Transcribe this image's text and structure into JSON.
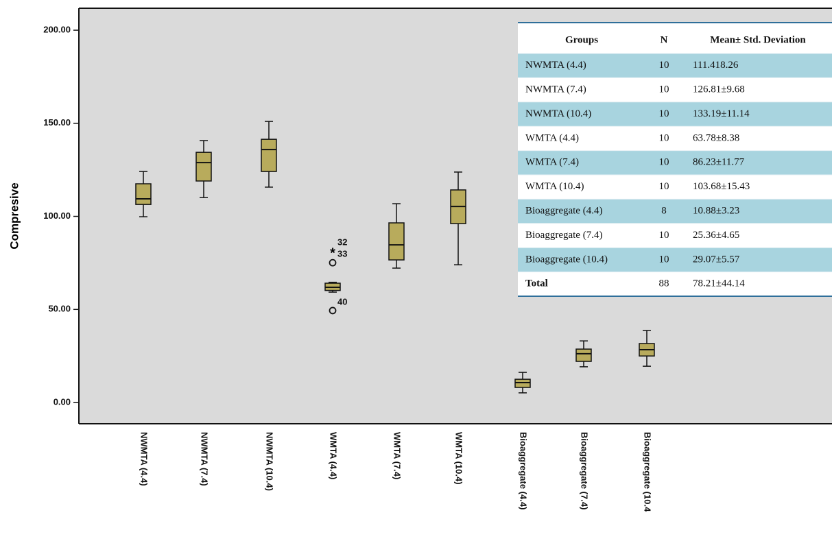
{
  "chart_data": {
    "type": "box",
    "y_label": "Compresive",
    "categories": [
      "NWMTA (4.4)",
      "NWMTA (7.4)",
      "NWMTA (10.4)",
      "WMTA (4.4)",
      "WMTA (7.4)",
      "WMTA (10.4)",
      "Bioaggregate (4.4)",
      "Bioaggregate (7.4)",
      "Bioaggregate (10.4"
    ],
    "color": "#b8ab5c",
    "boxes": [
      {
        "min": 99.8,
        "q1": 106.4,
        "median": 109.4,
        "q3": 117.5,
        "max": 124.1
      },
      {
        "min": 110.1,
        "q1": 119,
        "median": 128.9,
        "q3": 134.4,
        "max": 140.7
      },
      {
        "min": 115.7,
        "q1": 124.1,
        "median": 135.9,
        "q3": 141.4,
        "max": 151
      },
      {
        "min": 59.3,
        "q1": 60.2,
        "median": 61.9,
        "q3": 64.1,
        "max": 64.6,
        "outliers": [
          {
            "value": 81.4,
            "label": "32",
            "marker": "star"
          },
          {
            "value": 75.1,
            "label": "33",
            "marker": "circle"
          },
          {
            "value": 49.4,
            "label": "40",
            "marker": "circle"
          }
        ]
      },
      {
        "min": 72.2,
        "q1": 76.6,
        "median": 84.7,
        "q3": 96.5,
        "max": 106.8
      },
      {
        "min": 74,
        "q1": 96.1,
        "median": 105.3,
        "q3": 114.2,
        "max": 123.8
      },
      {
        "min": 5.2,
        "q1": 8.1,
        "median": 10.7,
        "q3": 12.5,
        "max": 16.2
      },
      {
        "min": 19.2,
        "q1": 22.1,
        "median": 26.2,
        "q3": 28.7,
        "max": 33.1
      },
      {
        "min": 19.5,
        "q1": 25,
        "median": 28.4,
        "q3": 31.7,
        "max": 38.7
      }
    ],
    "ylim": [
      -11.4,
      211.8
    ],
    "yticks": [
      {
        "value": 0,
        "label": "0.00"
      },
      {
        "value": 50,
        "label": "50.00"
      },
      {
        "value": 100,
        "label": "100.00"
      },
      {
        "value": 150,
        "label": "150.00"
      },
      {
        "value": 200,
        "label": "200.00"
      }
    ]
  },
  "table": {
    "header": [
      "Groups",
      "N",
      "Mean± Std. Deviation"
    ],
    "rows": [
      [
        "NWMTA (4.4)",
        10,
        "111.418.26"
      ],
      [
        "NWMTA (7.4)",
        10,
        "126.81±9.68"
      ],
      [
        "NWMTA (10.4)",
        10,
        "133.19±11.14"
      ],
      [
        "WMTA (4.4)",
        10,
        "63.78±8.38"
      ],
      [
        "WMTA (7.4)",
        10,
        "86.23±11.77"
      ],
      [
        "WMTA (10.4)",
        10,
        "103.68±15.43"
      ],
      [
        "Bioaggregate (4.4)",
        8,
        "10.88±3.23"
      ],
      [
        "Bioaggregate (7.4)",
        10,
        "25.36±4.65"
      ],
      [
        "Bioaggregate (10.4)",
        10,
        "29.07±5.57"
      ],
      [
        "Total",
        88,
        "78.21±44.14"
      ]
    ]
  }
}
